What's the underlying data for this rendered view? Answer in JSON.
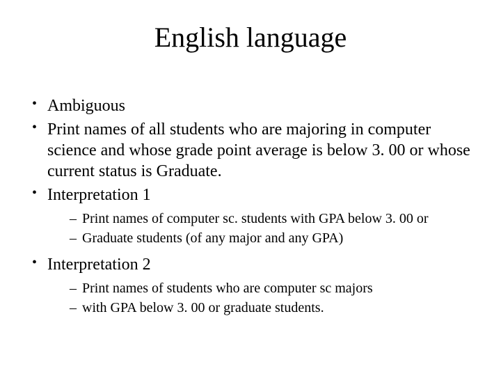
{
  "slide": {
    "title": "English language",
    "bullets": [
      {
        "text": "Ambiguous"
      },
      {
        "text": "Print names of all students who are majoring in computer science and whose grade point average is below 3. 00 or whose current status is Graduate."
      },
      {
        "text": "Interpretation 1",
        "sub": [
          "Print names of computer sc. students with GPA below 3. 00 or",
          "Graduate students (of any  major and any GPA)"
        ]
      },
      {
        "text": "Interpretation 2",
        "sub": [
          "Print names of students who are computer sc majors",
          " with GPA below 3. 00 or graduate students."
        ]
      }
    ],
    "colors": {
      "background": "#ffffff",
      "text": "#000000"
    },
    "typography": {
      "title_fontsize": 40,
      "level1_fontsize": 24,
      "level2_fontsize": 20,
      "font_family": "Times New Roman"
    }
  }
}
